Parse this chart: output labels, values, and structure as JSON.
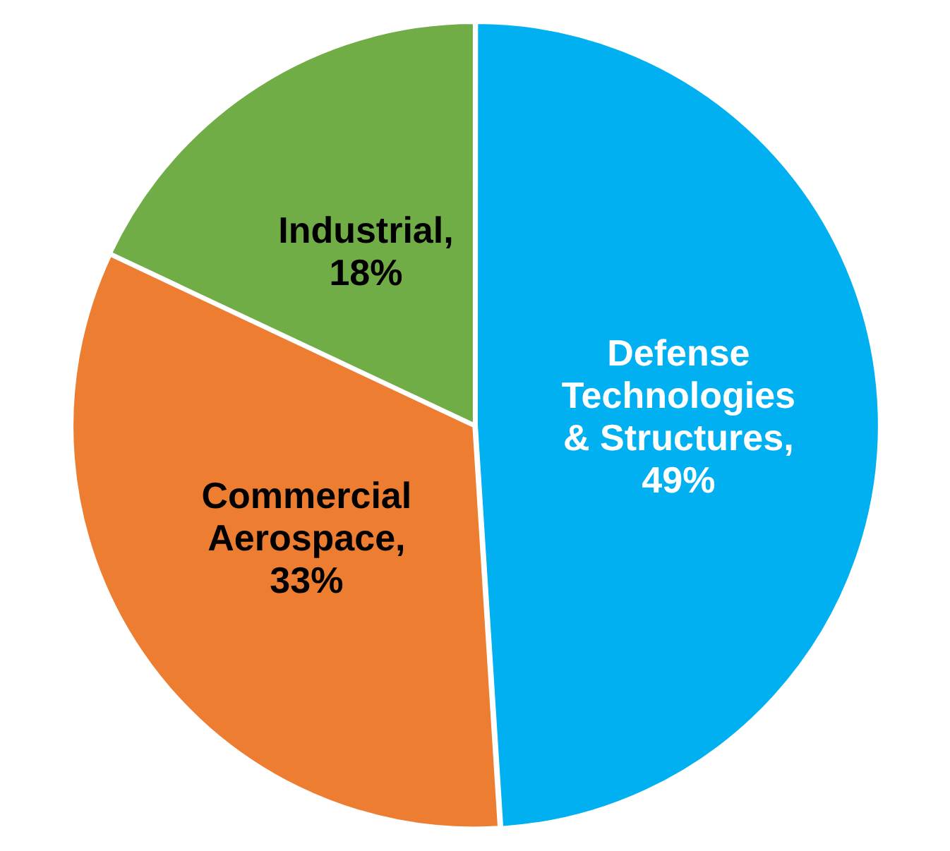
{
  "chart_data": {
    "type": "pie",
    "categories": [
      "Defense Technologies & Structures",
      "Commercial Aerospace",
      "Industrial"
    ],
    "values": [
      49,
      33,
      18
    ],
    "value_labels": [
      ", 49%",
      ", 33%",
      ", 18%"
    ],
    "colors": [
      "#00b0f0",
      "#ed7d31",
      "#70ad47"
    ],
    "legend": false
  }
}
